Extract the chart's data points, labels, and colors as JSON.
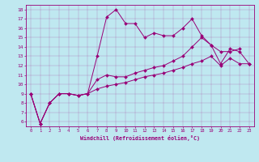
{
  "xlabel": "Windchill (Refroidissement éolien,°C)",
  "background_color": "#bfe8f0",
  "line_color": "#990077",
  "xlim": [
    -0.5,
    23.5
  ],
  "ylim": [
    5.5,
    18.5
  ],
  "xticks": [
    0,
    1,
    2,
    3,
    4,
    5,
    6,
    7,
    8,
    9,
    10,
    11,
    12,
    13,
    14,
    15,
    16,
    17,
    18,
    19,
    20,
    21,
    22,
    23
  ],
  "yticks": [
    6,
    7,
    8,
    9,
    10,
    11,
    12,
    13,
    14,
    15,
    16,
    17,
    18
  ],
  "series": [
    {
      "x": [
        0,
        1,
        2,
        3,
        4,
        5,
        6,
        7,
        8,
        9,
        10,
        11,
        12,
        13,
        14,
        15,
        16,
        17,
        18,
        19,
        20,
        21,
        22
      ],
      "y": [
        9.0,
        5.8,
        8.0,
        9.0,
        9.0,
        8.8,
        9.0,
        13.0,
        17.2,
        18.0,
        16.5,
        16.5,
        15.0,
        15.5,
        15.2,
        15.2,
        16.0,
        17.0,
        15.2,
        14.2,
        13.5,
        13.5,
        13.8
      ]
    },
    {
      "x": [
        0,
        1,
        2,
        3,
        4,
        5,
        6,
        7,
        8,
        9,
        10,
        11,
        12,
        13,
        14,
        15,
        16,
        17,
        18,
        19,
        20,
        21,
        22,
        23
      ],
      "y": [
        9.0,
        5.8,
        8.0,
        9.0,
        9.0,
        8.8,
        9.0,
        10.5,
        11.0,
        10.8,
        10.8,
        11.2,
        11.5,
        11.8,
        12.0,
        12.5,
        13.0,
        14.0,
        15.0,
        14.2,
        12.2,
        13.8,
        13.5,
        12.2
      ]
    },
    {
      "x": [
        0,
        1,
        2,
        3,
        4,
        5,
        6,
        7,
        8,
        9,
        10,
        11,
        12,
        13,
        14,
        15,
        16,
        17,
        18,
        19,
        20,
        21,
        22,
        23
      ],
      "y": [
        9.0,
        5.8,
        8.0,
        9.0,
        9.0,
        8.8,
        9.0,
        9.5,
        9.8,
        10.0,
        10.2,
        10.5,
        10.8,
        11.0,
        11.2,
        11.5,
        11.8,
        12.2,
        12.5,
        13.0,
        12.0,
        12.8,
        12.2,
        12.2
      ]
    }
  ]
}
